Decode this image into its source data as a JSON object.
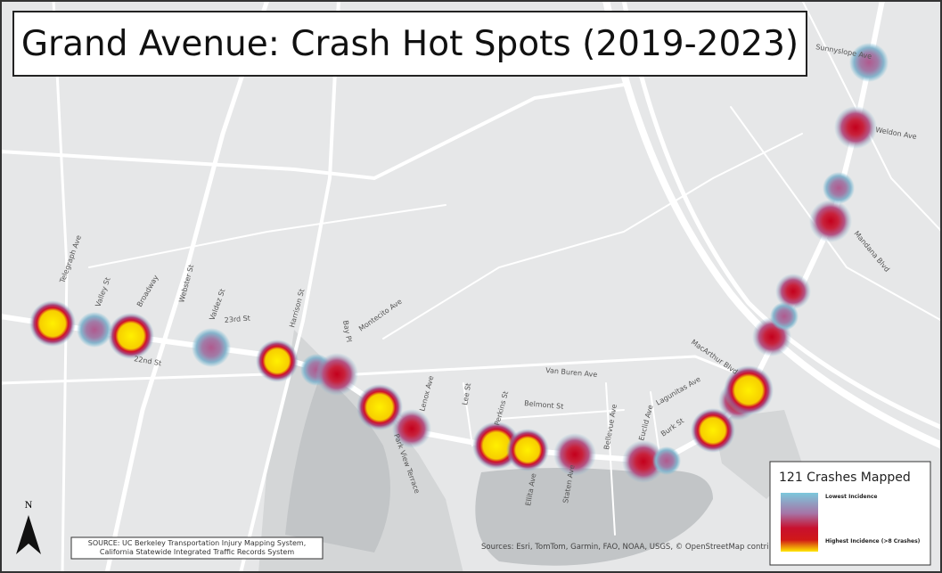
{
  "title": "Grand Avenue: Crash Hot Spots (2019-2023)",
  "streets": [
    "Telegraph Ave",
    "Valley St",
    "Broadway",
    "Webster St",
    "Valdez St",
    "23rd St",
    "22nd St",
    "Harrison St",
    "Bay Pl",
    "Montecito Ave",
    "Van Buren Ave",
    "Lenox Ave",
    "Lee St",
    "Perkins St",
    "Belmont St",
    "Bellevue Ave",
    "Park View Terrace",
    "Ellita Ave",
    "Staten Ave",
    "Euclid Ave",
    "Lagunitas Ave",
    "Burk St",
    "MacArthur Blvd",
    "Mandana Blvd",
    "Weldon Ave",
    "Sunnyslope Ave"
  ],
  "legend": {
    "title": "121 Crashes Mapped",
    "low": "Lowest Incidence",
    "high": "Highest Incidence (>8 Crashes)"
  },
  "source": [
    "SOURCE: UC Berkeley Transportation Injury Mapping System,",
    "California Statewide Integrated Traffic Records System"
  ],
  "attribution": "Sources: Esri, TomTom, Garmin, FAO, NOAA, USGS, © OpenStreetMap contri",
  "north": "N"
}
